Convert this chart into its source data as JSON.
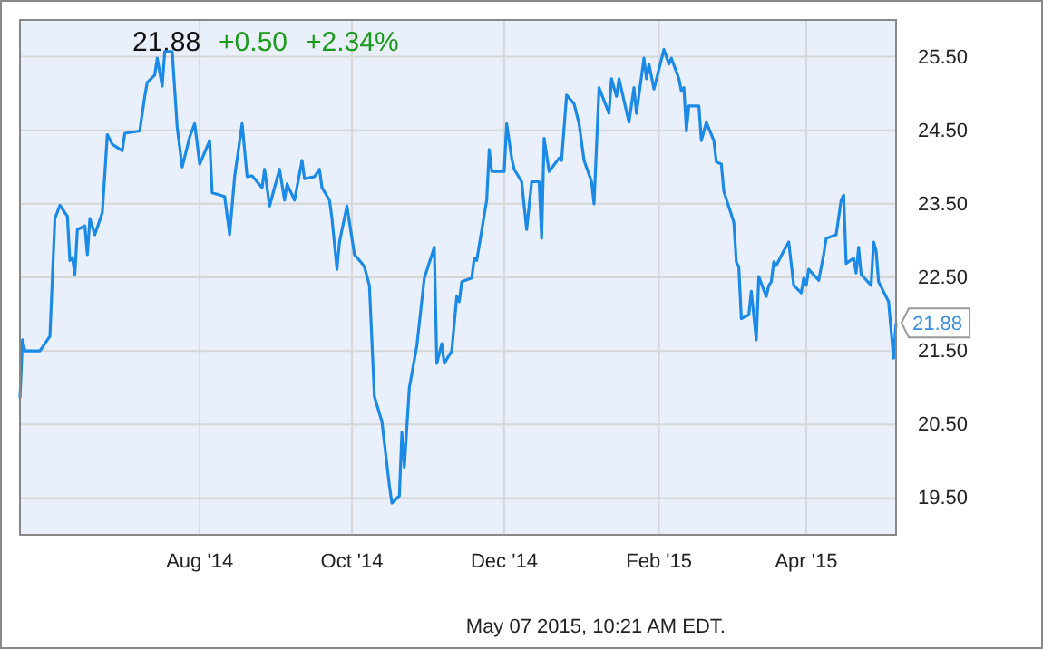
{
  "chart_data": {
    "type": "line",
    "annotations": [
      "21.88",
      "+0.50",
      "+2.34%",
      {
        "text": "21.88",
        "x": "2015-05-07",
        "y": 21.88
      },
      "May 07 2015, 10:21 AM EDT."
    ],
    "x": [
      "2014-05-21",
      "2014-05-22",
      "2014-05-23",
      "2014-05-29",
      "2014-06-02",
      "2014-06-04",
      "2014-06-06",
      "2014-06-09",
      "2014-06-10",
      "2014-06-11",
      "2014-06-12",
      "2014-06-13",
      "2014-06-16",
      "2014-06-17",
      "2014-06-18",
      "2014-06-20",
      "2014-06-23",
      "2014-06-25",
      "2014-06-27",
      "2014-07-01",
      "2014-07-02",
      "2014-07-08",
      "2014-07-10",
      "2014-07-11",
      "2014-07-14",
      "2014-07-15",
      "2014-07-17",
      "2014-07-18",
      "2014-07-21",
      "2014-07-23",
      "2014-07-25",
      "2014-07-28",
      "2014-07-30",
      "2014-08-01",
      "2014-08-05",
      "2014-08-06",
      "2014-08-08",
      "2014-08-11",
      "2014-08-13",
      "2014-08-15",
      "2014-08-18",
      "2014-08-20",
      "2014-08-22",
      "2014-08-26",
      "2014-08-27",
      "2014-08-29",
      "2014-09-02",
      "2014-09-04",
      "2014-09-05",
      "2014-09-08",
      "2014-09-11",
      "2014-09-12",
      "2014-09-16",
      "2014-09-18",
      "2014-09-19",
      "2014-09-22",
      "2014-09-23",
      "2014-09-25",
      "2014-09-26",
      "2014-09-29",
      "2014-10-02",
      "2014-10-05",
      "2014-10-06",
      "2014-10-08",
      "2014-10-10",
      "2014-10-13",
      "2014-10-16",
      "2014-10-17",
      "2014-10-20",
      "2014-10-21",
      "2014-10-22",
      "2014-10-24",
      "2014-10-27",
      "2014-10-30",
      "2014-11-03",
      "2014-11-04",
      "2014-11-06",
      "2014-11-07",
      "2014-11-10",
      "2014-11-12",
      "2014-11-13",
      "2014-11-14",
      "2014-11-18",
      "2014-11-19",
      "2014-11-20",
      "2014-11-24",
      "2014-11-25",
      "2014-11-26",
      "2014-12-01",
      "2014-12-02",
      "2014-12-04",
      "2014-12-05",
      "2014-12-08",
      "2014-12-10",
      "2014-12-12",
      "2014-12-15",
      "2014-12-16",
      "2014-12-17",
      "2014-12-19",
      "2014-12-23",
      "2014-12-24",
      "2014-12-26",
      "2014-12-29",
      "2014-12-31",
      "2015-01-02",
      "2015-01-05",
      "2015-01-06",
      "2015-01-08",
      "2015-01-12",
      "2015-01-13",
      "2015-01-15",
      "2015-01-16",
      "2015-01-20",
      "2015-01-22",
      "2015-01-23",
      "2015-01-26",
      "2015-01-27",
      "2015-01-28",
      "2015-01-30",
      "2015-02-03",
      "2015-02-05",
      "2015-02-06",
      "2015-02-09",
      "2015-02-10",
      "2015-02-11",
      "2015-02-12",
      "2015-02-13",
      "2015-02-17",
      "2015-02-18",
      "2015-02-20",
      "2015-02-23",
      "2015-02-24",
      "2015-02-26",
      "2015-02-27",
      "2015-03-03",
      "2015-03-04",
      "2015-03-05",
      "2015-03-06",
      "2015-03-09",
      "2015-03-10",
      "2015-03-12",
      "2015-03-13",
      "2015-03-16",
      "2015-03-17",
      "2015-03-18",
      "2015-03-19",
      "2015-03-20",
      "2015-03-23",
      "2015-03-25",
      "2015-03-27",
      "2015-03-30",
      "2015-03-31",
      "2015-04-01",
      "2015-04-02",
      "2015-04-06",
      "2015-04-08",
      "2015-04-09",
      "2015-04-13",
      "2015-04-15",
      "2015-04-16",
      "2015-04-17",
      "2015-04-20",
      "2015-04-21",
      "2015-04-22",
      "2015-04-23",
      "2015-04-27",
      "2015-04-28",
      "2015-04-29",
      "2015-04-30",
      "2015-05-04",
      "2015-05-06",
      "2015-05-07"
    ],
    "series": [
      {
        "color": "#1b8ae6",
        "values": [
          20.86,
          21.65,
          21.5,
          21.5,
          21.7,
          23.3,
          23.48,
          23.33,
          22.73,
          22.77,
          22.54,
          23.15,
          23.2,
          22.81,
          23.3,
          23.08,
          23.38,
          24.44,
          24.31,
          24.22,
          24.46,
          24.49,
          24.96,
          25.15,
          25.25,
          25.48,
          25.1,
          25.57,
          25.57,
          24.54,
          24.0,
          24.41,
          24.59,
          24.04,
          24.36,
          23.65,
          23.63,
          23.6,
          23.08,
          23.87,
          24.59,
          23.87,
          23.88,
          23.72,
          23.97,
          23.47,
          23.97,
          23.55,
          23.77,
          23.55,
          24.09,
          23.84,
          23.87,
          23.97,
          23.72,
          23.55,
          23.3,
          22.61,
          22.98,
          23.47,
          22.81,
          22.69,
          22.64,
          22.39,
          20.88,
          20.54,
          19.67,
          19.43,
          19.53,
          20.39,
          19.92,
          21.0,
          21.57,
          22.49,
          22.91,
          21.33,
          21.6,
          21.33,
          21.5,
          22.24,
          22.17,
          22.44,
          22.49,
          22.76,
          22.73,
          23.55,
          24.24,
          23.94,
          23.94,
          24.59,
          24.12,
          23.97,
          23.8,
          23.15,
          23.8,
          23.8,
          23.03,
          24.39,
          23.94,
          24.12,
          24.09,
          24.98,
          24.86,
          24.59,
          24.09,
          23.8,
          23.5,
          25.08,
          24.73,
          25.2,
          24.96,
          25.2,
          24.61,
          25.08,
          24.73,
          25.48,
          25.2,
          25.4,
          25.06,
          25.6,
          25.4,
          25.48,
          25.2,
          25.03,
          25.08,
          24.49,
          24.83,
          24.83,
          24.36,
          24.61,
          24.36,
          24.07,
          24.04,
          23.67,
          23.25,
          22.71,
          22.64,
          21.94,
          21.99,
          22.31,
          21.65,
          22.51,
          22.24,
          22.39,
          22.44,
          22.71,
          22.66,
          22.86,
          22.98,
          22.39,
          22.29,
          22.49,
          22.39,
          22.61,
          22.46,
          22.81,
          23.03,
          23.08,
          23.55,
          23.62,
          22.69,
          22.76,
          22.56,
          22.91,
          22.54,
          22.39,
          22.98,
          22.86,
          22.44,
          22.17,
          21.4,
          21.88
        ]
      }
    ],
    "xlim": [
      "2014-05-21",
      "2015-05-07"
    ],
    "xticks": [
      {
        "value": "2014-08-01",
        "label": "Aug '14"
      },
      {
        "value": "2014-10-01",
        "label": "Oct '14"
      },
      {
        "value": "2014-12-01",
        "label": "Dec '14"
      },
      {
        "value": "2015-02-01",
        "label": "Feb '15"
      },
      {
        "value": "2015-04-01",
        "label": "Apr '15"
      }
    ],
    "ylim": [
      19,
      26
    ],
    "yticks": [
      {
        "value": 19.5,
        "label": "19.50"
      },
      {
        "value": 20.5,
        "label": "20.50"
      },
      {
        "value": 21.5,
        "label": "21.50"
      },
      {
        "value": 22.5,
        "label": "22.50"
      },
      {
        "value": 23.5,
        "label": "23.50"
      },
      {
        "value": 24.5,
        "label": "24.50"
      },
      {
        "value": 25.5,
        "label": "25.50"
      }
    ],
    "grid": true,
    "marker": "none",
    "line_style": "solid"
  }
}
